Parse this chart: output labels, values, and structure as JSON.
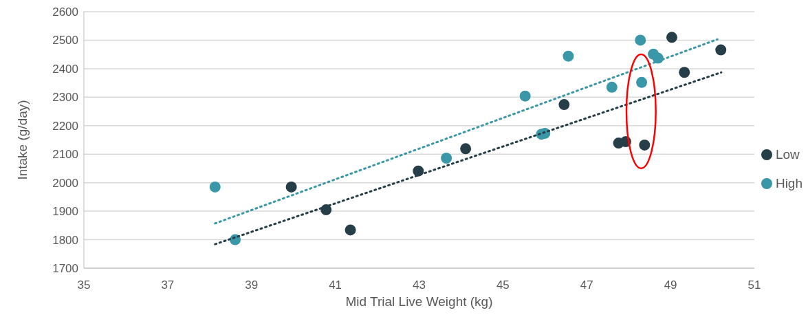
{
  "chart_data": {
    "type": "scatter",
    "xlabel": "Mid Trial Live Weight (kg)",
    "ylabel": "Intake (g/day)",
    "xlim": [
      35,
      51
    ],
    "xticks": [
      35,
      37,
      39,
      41,
      43,
      45,
      47,
      49,
      51
    ],
    "ylim": [
      1700,
      2600
    ],
    "yticks": [
      1700,
      1800,
      1900,
      2000,
      2100,
      2200,
      2300,
      2400,
      2500,
      2600
    ],
    "grid": "y",
    "legend": "right",
    "series": [
      {
        "name": "Low",
        "color": "#263e48",
        "marker": "circle",
        "x": [
          39.95,
          40.78,
          41.36,
          42.98,
          44.11,
          46.46,
          47.76,
          47.93,
          48.38,
          49.03,
          49.33,
          50.2
        ],
        "values": [
          1985,
          1905,
          1834,
          2041,
          2119,
          2274,
          2139,
          2144,
          2132,
          2510,
          2387,
          2466
        ]
      },
      {
        "name": "High",
        "color": "#3a97a8",
        "marker": "circle",
        "x": [
          38.13,
          38.61,
          43.65,
          45.53,
          45.92,
          46.0,
          46.56,
          47.6,
          48.28,
          48.31,
          48.59,
          48.7
        ],
        "values": [
          1985,
          1800,
          2086,
          2304,
          2170,
          2173,
          2444,
          2335,
          2500,
          2352,
          2451,
          2437
        ]
      },
      {
        "type": "line",
        "color": "#263e48",
        "line_style": "dotted",
        "marker": "none",
        "x": [
          38.13,
          50.21
        ],
        "values": [
          1784,
          2387
        ]
      },
      {
        "type": "line",
        "color": "#3a97a8",
        "line_style": "dotted",
        "marker": "none",
        "x": [
          38.13,
          50.12
        ],
        "values": [
          1857,
          2503
        ]
      }
    ]
  }
}
